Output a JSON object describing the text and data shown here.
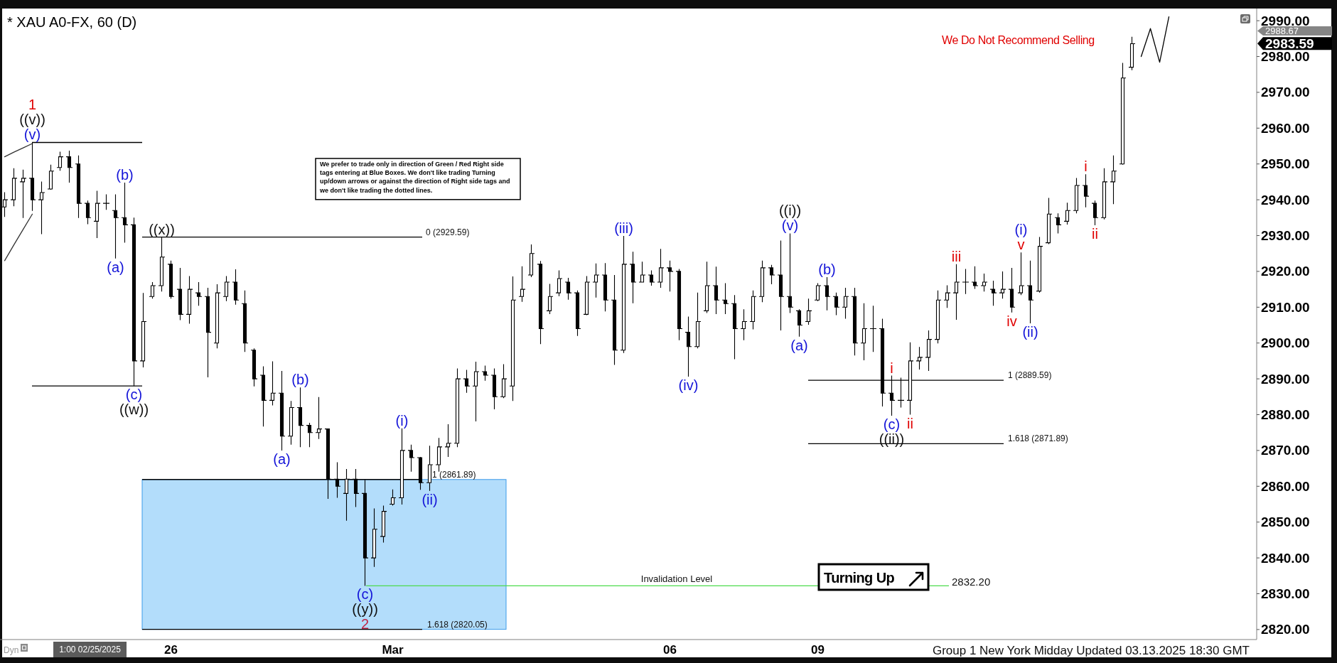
{
  "chart_data": {
    "type": "candlestick",
    "title": "* XAU A0-FX, 60 (D)",
    "color": "#000000",
    "categories": [
      null,
      null,
      null,
      null,
      null,
      null,
      null,
      null,
      null,
      null,
      null,
      null,
      null,
      null,
      null,
      null,
      null,
      null,
      "26",
      null,
      null,
      null,
      null,
      null,
      null,
      null,
      null,
      null,
      null,
      null,
      null,
      null,
      null,
      null,
      null,
      null,
      null,
      null,
      null,
      null,
      null,
      null,
      "Mar",
      null,
      null,
      null,
      null,
      null,
      null,
      null,
      null,
      null,
      null,
      null,
      null,
      null,
      null,
      null,
      null,
      null,
      null,
      null,
      null,
      null,
      null,
      null,
      null,
      null,
      null,
      null,
      null,
      null,
      "06",
      null,
      null,
      null,
      null,
      null,
      null,
      null,
      null,
      null,
      null,
      null,
      null,
      null,
      null,
      null,
      "09",
      null,
      null,
      null,
      null,
      null,
      null,
      null,
      null,
      null,
      null,
      null,
      null,
      null,
      null,
      null,
      null,
      null,
      null,
      null,
      null,
      null,
      null,
      null,
      null,
      null,
      null,
      null,
      null,
      null,
      null,
      null,
      null,
      null,
      null,
      null,
      null,
      null,
      null,
      null,
      null,
      null,
      null,
      null,
      null,
      null,
      null,
      null
    ],
    "ohlc": [
      [
        2938,
        2942.1,
        2935.2,
        2940
      ],
      [
        2940,
        2948.8,
        2938.2,
        2946
      ],
      [
        2945,
        2948.4,
        2934.9,
        2946
      ],
      [
        2946,
        2956,
        2936.9,
        2940
      ],
      [
        2940,
        2945.1,
        2930.4,
        2942
      ],
      [
        2943,
        2949.8,
        2942.8,
        2948
      ],
      [
        2949,
        2953.4,
        2948.1,
        2952
      ],
      [
        2952,
        2953.7,
        2944.8,
        2949
      ],
      [
        2950,
        2952.4,
        2934.9,
        2939
      ],
      [
        2939,
        2939.8,
        2933.2,
        2935
      ],
      [
        2934,
        2942.5,
        2929.3,
        2939
      ],
      [
        2939,
        2941.5,
        2937.2,
        2939
      ],
      [
        2937,
        2941.5,
        2923.6,
        2935
      ],
      [
        2935,
        2944.8,
        2928,
        2933
      ],
      [
        2933,
        2935,
        2888,
        2895
      ],
      [
        2895,
        2914,
        2893.2,
        2906
      ],
      [
        2913,
        2917,
        2912.4,
        2916
      ],
      [
        2916,
        2929.59,
        2914.4,
        2924
      ],
      [
        2922,
        2923,
        2912.4,
        2913
      ],
      [
        2915,
        2921,
        2906.4,
        2908
      ],
      [
        2908,
        2918.7,
        2905.4,
        2915
      ],
      [
        2914,
        2917,
        2910.4,
        2913
      ],
      [
        2913,
        2915.4,
        2890.4,
        2903
      ],
      [
        2900,
        2916.4,
        2898.5,
        2914
      ],
      [
        2913,
        2918.7,
        2911.7,
        2917
      ],
      [
        2917,
        2920.6,
        2910.7,
        2912
      ],
      [
        2911,
        2914.7,
        2897.5,
        2900
      ],
      [
        2898,
        2898.5,
        2887.9,
        2890
      ],
      [
        2891,
        2893.5,
        2876.7,
        2884
      ],
      [
        2884,
        2894.9,
        2882.6,
        2886
      ],
      [
        2886,
        2892.2,
        2870,
        2874
      ],
      [
        2874,
        2883.8,
        2871.6,
        2882
      ],
      [
        2882,
        2887.6,
        2870.9,
        2877
      ],
      [
        2877,
        2877.7,
        2870.9,
        2875
      ],
      [
        2875,
        2884.9,
        2873.2,
        2876
      ],
      [
        2876,
        2876,
        2856.5,
        2862
      ],
      [
        2862,
        2866.7,
        2856.8,
        2860
      ],
      [
        2858,
        2864.8,
        2850.4,
        2862
      ],
      [
        2862,
        2864.8,
        2854.2,
        2858
      ],
      [
        2858,
        2861.8,
        2832.2,
        2840
      ],
      [
        2840,
        2853.8,
        2837.5,
        2848
      ],
      [
        2846,
        2854.6,
        2844.3,
        2853
      ],
      [
        2855,
        2859.1,
        2854.6,
        2856.8
      ],
      [
        2856.8,
        2876.2,
        2854.9,
        2870
      ],
      [
        2870,
        2871.6,
        2864.1,
        2868
      ],
      [
        2868,
        2868.2,
        2859,
        2861
      ],
      [
        2861,
        2871.3,
        2858.7,
        2866
      ],
      [
        2866,
        2873.5,
        2864.1,
        2871
      ],
      [
        2871,
        2877.3,
        2868.2,
        2872
      ],
      [
        2872,
        2892.9,
        2870.9,
        2890
      ],
      [
        2890,
        2892.5,
        2886.1,
        2888
      ],
      [
        2888,
        2894.8,
        2878.1,
        2892
      ],
      [
        2892,
        2893.7,
        2889.5,
        2891
      ],
      [
        2891,
        2892.9,
        2881.5,
        2885
      ],
      [
        2885,
        2894.1,
        2884.6,
        2890
      ],
      [
        2888,
        2918.6,
        2883.8,
        2912
      ],
      [
        2913,
        2921.4,
        2911.5,
        2915
      ],
      [
        2919,
        2927.5,
        2918.4,
        2925
      ],
      [
        2922,
        2922.9,
        2899.7,
        2904
      ],
      [
        2909,
        2916.5,
        2908.1,
        2913
      ],
      [
        2914,
        2920.3,
        2913.1,
        2918
      ],
      [
        2917,
        2918.2,
        2912.1,
        2914
      ],
      [
        2914,
        2914.7,
        2902,
        2904
      ],
      [
        2908,
        2918.7,
        2907.8,
        2917
      ],
      [
        2917,
        2922.2,
        2912.7,
        2919
      ],
      [
        2919,
        2922.3,
        2908.8,
        2912
      ],
      [
        2912,
        2919,
        2893.9,
        2898
      ],
      [
        2898,
        2929.9,
        2897.2,
        2922
      ],
      [
        2922,
        2925.5,
        2911.1,
        2917
      ],
      [
        2917,
        2922.7,
        2917,
        2919
      ],
      [
        2919,
        2920.3,
        2916,
        2917
      ],
      [
        2917,
        2926.3,
        2915.4,
        2921
      ],
      [
        2921,
        2923,
        2914.4,
        2920
      ],
      [
        2920,
        2920.7,
        2900.8,
        2904
      ],
      [
        2903,
        2907.4,
        2890.6,
        2899
      ],
      [
        2899,
        2914.1,
        2898.5,
        2906
      ],
      [
        2909,
        2922.7,
        2908.4,
        2916
      ],
      [
        2916,
        2921.3,
        2908.1,
        2912
      ],
      [
        2912,
        2916.7,
        2908.1,
        2911
      ],
      [
        2911,
        2913.4,
        2895.5,
        2904
      ],
      [
        2904,
        2909.4,
        2900.8,
        2906
      ],
      [
        2906,
        2914.7,
        2903.8,
        2913
      ],
      [
        2913,
        2923,
        2911.4,
        2921
      ],
      [
        2921,
        2921.8,
        2916.4,
        2919
      ],
      [
        2919,
        2928.6,
        2903.5,
        2913
      ],
      [
        2913,
        2930.6,
        2908.4,
        2910
      ],
      [
        2909,
        2909.4,
        2901.8,
        2905
      ],
      [
        2906,
        2912.4,
        2905.1,
        2909
      ],
      [
        2912,
        2916.7,
        2911.7,
        2916
      ],
      [
        2916,
        2918.4,
        2909.1,
        2913
      ],
      [
        2913,
        2914.1,
        2907.8,
        2910
      ],
      [
        2910,
        2915.4,
        2906.8,
        2913
      ],
      [
        2913,
        2915.4,
        2896.5,
        2900
      ],
      [
        2900,
        2911.1,
        2895.2,
        2904
      ],
      [
        2904,
        2910.4,
        2897.5,
        2904
      ],
      [
        2904,
        2906.8,
        2882.3,
        2886
      ],
      [
        2886,
        2890.9,
        2879.7,
        2884
      ],
      [
        2884,
        2890.3,
        2882,
        2884
      ],
      [
        2884,
        2900.2,
        2880,
        2895
      ],
      [
        2895,
        2898.9,
        2892.6,
        2896
      ],
      [
        2896,
        2903.5,
        2892.2,
        2901
      ],
      [
        2901,
        2914.7,
        2899.9,
        2912
      ],
      [
        2912,
        2916.1,
        2909.8,
        2914
      ],
      [
        2914,
        2922,
        2906.5,
        2917
      ],
      [
        2917,
        2920.7,
        2913.7,
        2917
      ],
      [
        2917,
        2921.4,
        2915.1,
        2916
      ],
      [
        2916,
        2919.4,
        2914.4,
        2917
      ],
      [
        2915,
        2917.4,
        2910.4,
        2914
      ],
      [
        2914,
        2920,
        2912.4,
        2915
      ],
      [
        2915,
        2921,
        2908.5,
        2910
      ],
      [
        2914,
        2925.3,
        2913.4,
        2916
      ],
      [
        2916,
        2923,
        2905.5,
        2912
      ],
      [
        2914.5,
        2929.6,
        2914.1,
        2927
      ],
      [
        2928,
        2940.5,
        2927.6,
        2936
      ],
      [
        2935,
        2936.2,
        2930.6,
        2933
      ],
      [
        2934,
        2939.2,
        2933.1,
        2937
      ],
      [
        2937,
        2946.1,
        2936.2,
        2944
      ],
      [
        2944,
        2947.1,
        2937.9,
        2941
      ],
      [
        2939,
        2939.8,
        2932.9,
        2935
      ],
      [
        2935,
        2948.8,
        2934.5,
        2945
      ],
      [
        2945,
        2952.4,
        2938.8,
        2948
      ],
      [
        2950,
        2978.2,
        2949.8,
        2974
      ],
      [
        2977,
        2985.5,
        2976.2,
        2983.59
      ],
      null,
      null,
      null,
      null,
      null,
      null,
      null,
      null,
      null,
      null,
      null,
      null,
      null
    ],
    "series": [
      {
        "type": "line",
        "color": "#000000",
        "values": [
          null,
          null,
          null,
          null,
          null,
          null,
          null,
          null,
          null,
          null,
          null,
          null,
          null,
          null,
          null,
          null,
          null,
          null,
          null,
          null,
          null,
          null,
          null,
          null,
          null,
          null,
          null,
          null,
          null,
          null,
          null,
          null,
          null,
          null,
          null,
          null,
          null,
          null,
          null,
          null,
          null,
          null,
          null,
          null,
          null,
          null,
          null,
          null,
          null,
          null,
          null,
          null,
          null,
          null,
          null,
          null,
          null,
          null,
          null,
          null,
          null,
          null,
          null,
          null,
          null,
          null,
          null,
          null,
          null,
          null,
          null,
          null,
          null,
          null,
          null,
          null,
          null,
          null,
          null,
          null,
          null,
          null,
          null,
          null,
          null,
          null,
          null,
          null,
          null,
          null,
          null,
          null,
          null,
          null,
          null,
          null,
          null,
          null,
          null,
          null,
          null,
          null,
          null,
          null,
          null,
          null,
          null,
          null,
          null,
          null,
          null,
          null,
          null,
          null,
          null,
          null,
          null,
          null,
          null,
          null,
          null,
          null,
          null,
          2980,
          2987.8,
          2978.4,
          2991.1,
          null,
          null,
          null,
          null,
          null,
          null,
          null,
          null,
          null
        ]
      },
      {
        "type": "line",
        "color": "#333333",
        "values": [
          2952,
          2953.3,
          2954.5,
          2955.7,
          null,
          null,
          null,
          null,
          null,
          null,
          null,
          null,
          null,
          null,
          null,
          null,
          null,
          null,
          null,
          null,
          null,
          null,
          null,
          null,
          null,
          null,
          null,
          null,
          null,
          null,
          null,
          null,
          null,
          null,
          null,
          null,
          null,
          null,
          null,
          null,
          null,
          null,
          null,
          null,
          null,
          null,
          null,
          null,
          null,
          null,
          null,
          null,
          null,
          null,
          null,
          null,
          null,
          null,
          null,
          null,
          null,
          null,
          null,
          null,
          null,
          null,
          null,
          null,
          null,
          null,
          null,
          null,
          null,
          null,
          null,
          null,
          null,
          null,
          null,
          null,
          null,
          null,
          null,
          null,
          null,
          null,
          null,
          null,
          null,
          null,
          null,
          null,
          null,
          null,
          null,
          null,
          null,
          null,
          null,
          null,
          null,
          null,
          null,
          null,
          null,
          null,
          null,
          null,
          null,
          null,
          null,
          null,
          null,
          null,
          null,
          null,
          null,
          null,
          null,
          null,
          null,
          null,
          null,
          null,
          null,
          null,
          null,
          null,
          null,
          null,
          null,
          null,
          null,
          null,
          null,
          null
        ]
      },
      {
        "type": "line",
        "color": "#333333",
        "values": [
          2923,
          2927.4,
          2931.7,
          2936,
          null,
          null,
          null,
          null,
          null,
          null,
          null,
          null,
          null,
          null,
          null,
          null,
          null,
          null,
          null,
          null,
          null,
          null,
          null,
          null,
          null,
          null,
          null,
          null,
          null,
          null,
          null,
          null,
          null,
          null,
          null,
          null,
          null,
          null,
          null,
          null,
          null,
          null,
          null,
          null,
          null,
          null,
          null,
          null,
          null,
          null,
          null,
          null,
          null,
          null,
          null,
          null,
          null,
          null,
          null,
          null,
          null,
          null,
          null,
          null,
          null,
          null,
          null,
          null,
          null,
          null,
          null,
          null,
          null,
          null,
          null,
          null,
          null,
          null,
          null,
          null,
          null,
          null,
          null,
          null,
          null,
          null,
          null,
          null,
          null,
          null,
          null,
          null,
          null,
          null,
          null,
          null,
          null,
          null,
          null,
          null,
          null,
          null,
          null,
          null,
          null,
          null,
          null,
          null,
          null,
          null,
          null,
          null,
          null,
          null,
          null,
          null,
          null,
          null,
          null,
          null,
          null,
          null,
          null,
          null,
          null,
          null,
          null,
          null,
          null,
          null,
          null,
          null,
          null,
          null,
          null,
          null
        ]
      }
    ],
    "ylim": [
      2817.2,
      2993.4
    ],
    "yticks": [
      {
        "value": 2820,
        "label": "2820.00"
      },
      {
        "value": 2830,
        "label": "2830.00"
      },
      {
        "value": 2840,
        "label": "2840.00"
      },
      {
        "value": 2850,
        "label": "2850.00"
      },
      {
        "value": 2860,
        "label": "2860.00"
      },
      {
        "value": 2870,
        "label": "2870.00"
      },
      {
        "value": 2880,
        "label": "2880.00"
      },
      {
        "value": 2890,
        "label": "2890.00"
      },
      {
        "value": 2900,
        "label": "2900.00"
      },
      {
        "value": 2910,
        "label": "2910.00"
      },
      {
        "value": 2920,
        "label": "2920.00"
      },
      {
        "value": 2930,
        "label": "2930.00"
      },
      {
        "value": 2940,
        "label": "2940.00"
      },
      {
        "value": 2950,
        "label": "2950.00"
      },
      {
        "value": 2960,
        "label": "2960.00"
      },
      {
        "value": 2970,
        "label": "2970.00"
      },
      {
        "value": 2980,
        "label": "2980.00"
      },
      {
        "value": 2990,
        "label": "2990.00"
      }
    ],
    "ref_lines": [
      {
        "axis": "y",
        "value": 2956,
        "color": "#000000"
      },
      {
        "axis": "y",
        "value": 2888,
        "color": "#000000"
      },
      {
        "axis": "y",
        "value": 2929.59,
        "label": "0 (2929.59)",
        "color": "#000000"
      },
      {
        "axis": "y",
        "value": 2861.89,
        "label": "1 (2861.89)",
        "color": "#000000"
      },
      {
        "axis": "y",
        "value": 2820.05,
        "label": "1.618 (2820.05)",
        "color": "#000000"
      },
      {
        "axis": "y",
        "value": 2832.2,
        "label": "Invalidation Level",
        "color": "#4ddb4d"
      },
      {
        "axis": "y",
        "value": 2889.59,
        "label": "1 (2889.59)",
        "color": "#000000"
      },
      {
        "axis": "y",
        "value": 2871.89,
        "label": "1.618 (2871.89)",
        "color": "#000000"
      }
    ],
    "bands": [
      {
        "axis": "y",
        "from": 2820.05,
        "to": 2861.89,
        "color": "#b3ddfb"
      }
    ],
    "annotations": [
      {
        "text": "(v)",
        "y": 2956
      },
      {
        "text": "((v))",
        "y": 2956
      },
      {
        "text": "1",
        "y": 2956
      },
      {
        "text": "(a)",
        "y": 2923.6
      },
      {
        "text": "(b)",
        "y": 2944.8
      },
      {
        "text": "(c)",
        "y": 2888
      },
      {
        "text": "((w))",
        "y": 2888
      },
      {
        "text": "((x))",
        "y": 2929.59
      },
      {
        "text": "(a)",
        "y": 2870
      },
      {
        "text": "(b)",
        "y": 2887.6
      },
      {
        "text": "(c)",
        "y": 2832.2
      },
      {
        "text": "((y))",
        "y": 2832.2
      },
      {
        "text": "2",
        "y": 2832.2
      },
      {
        "text": "(i)",
        "y": 2876.2
      },
      {
        "text": "(ii)",
        "y": 2858.7
      },
      {
        "text": "(iii)",
        "y": 2929.9
      },
      {
        "text": "(iv)",
        "y": 2890.6
      },
      {
        "text": "(v)",
        "y": 2930.6
      },
      {
        "text": "((i))",
        "y": 2930.6
      },
      {
        "text": "(a)",
        "y": 2901.8
      },
      {
        "text": "(b)",
        "y": 2918.4
      },
      {
        "text": "(c)",
        "y": 2879.7
      },
      {
        "text": "((ii))",
        "y": 2879.7
      },
      {
        "text": "i",
        "y": 2890.9
      },
      {
        "text": "ii",
        "y": 2880
      },
      {
        "text": "iii",
        "y": 2922
      },
      {
        "text": "iv",
        "y": 2908.5
      },
      {
        "text": "v",
        "y": 2925.3
      },
      {
        "text": "(i)",
        "y": 2925.3
      },
      {
        "text": "(ii)",
        "y": 2905.5
      },
      {
        "text": "i",
        "y": 2947.1
      },
      {
        "text": "ii",
        "y": 2932.9
      },
      "2832.20",
      "2988.67",
      "2983.59",
      "We prefer to trade only in direction of Green / Red Right side tags entering at Blue Boxes. We don't like trading Turning up/down arrows or against the direction of Right side tags and we don't like trading the dotted lines.",
      "We Do Not Recommend Selling",
      "Turning Up",
      "Group 1 New York Midday Updated 03.13.2025 18:30 GMT",
      "1:00 02/25/2025",
      "Dyn"
    ]
  }
}
